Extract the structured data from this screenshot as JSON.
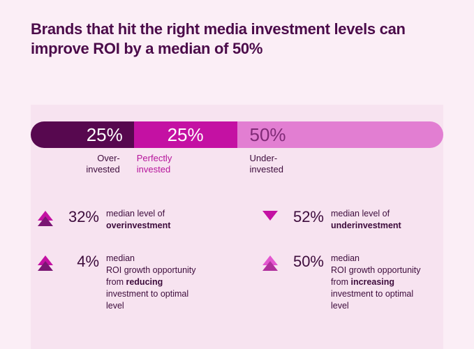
{
  "page": {
    "background_color": "#fbeef6",
    "panel_left_color": "#f7e3f0",
    "panel_right_color": "#f7e3f0"
  },
  "title": {
    "text": "Brands that hit the right media investment levels can improve ROI by a median of 50%",
    "color": "#4b0b4a",
    "fontsize": 22
  },
  "bar": {
    "segments": [
      {
        "key": "over",
        "width_pct": 25,
        "value": "25%",
        "bg": "#57084f",
        "fg": "#ffffff",
        "label": "Over-\ninvested",
        "label_color": "#3d0c3c"
      },
      {
        "key": "perfect",
        "width_pct": 25,
        "value": "25%",
        "bg": "#c411a3",
        "fg": "#ffffff",
        "label": "Perfectly\ninvested",
        "label_color": "#b6149b"
      },
      {
        "key": "under",
        "width_pct": 50,
        "value": "50%",
        "bg": "#e27ed2",
        "fg": "#802a77",
        "label": "Under-\ninvested",
        "label_color": "#3d0c3c"
      }
    ],
    "height": 38,
    "value_fontsize": 26,
    "label_fontsize": 13
  },
  "stats": {
    "text_color": "#3d0c3c",
    "left": [
      {
        "icon": {
          "shape": "double-up",
          "color1": "#c411a3",
          "color2": "#7a1673"
        },
        "value": "32%",
        "desc_html": "median level of <b>overinvestment</b>"
      },
      {
        "icon": {
          "shape": "double-up",
          "color1": "#c411a3",
          "color2": "#7a1673"
        },
        "value": "4%",
        "desc_html": "median<br>ROI growth opportunity from <b>reducing</b> investment to optimal level"
      }
    ],
    "right": [
      {
        "icon": {
          "shape": "down",
          "color1": "#c411a3"
        },
        "value": "52%",
        "desc_html": "median level of <b>underinvestment</b>"
      },
      {
        "icon": {
          "shape": "double-up",
          "color1": "#e356cf",
          "color2": "#b02f9c"
        },
        "value": "50%",
        "desc_html": "median<br>ROI growth opportunity from <b>increasing</b> investment to optimal level"
      }
    ]
  }
}
